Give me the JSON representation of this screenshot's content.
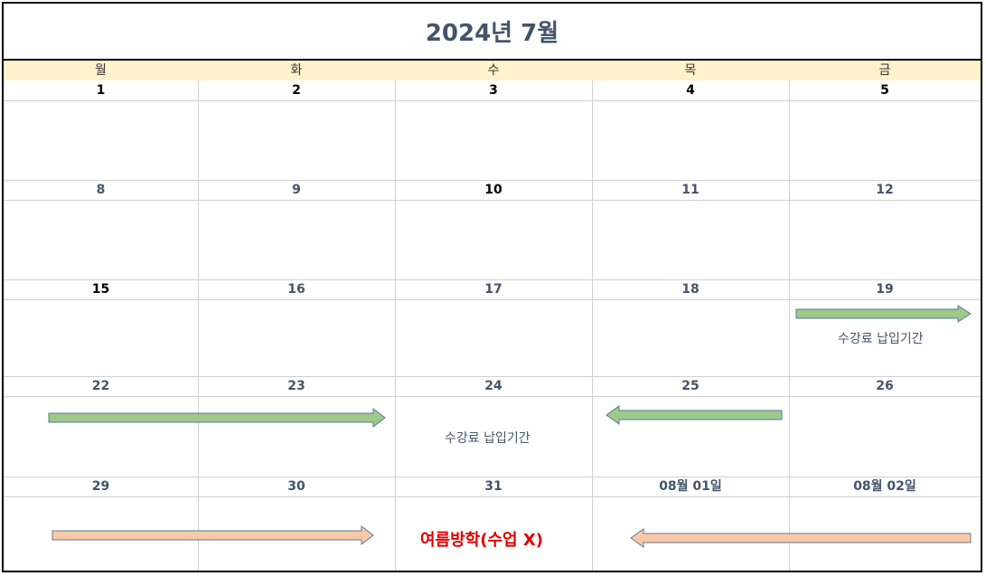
{
  "calendar": {
    "title": "2024년 7월",
    "weekdays": [
      "월",
      "화",
      "수",
      "목",
      "금"
    ],
    "weeks": [
      [
        "1",
        "2",
        "3",
        "4",
        "5"
      ],
      [
        "8",
        "9",
        "10",
        "11",
        "12"
      ],
      [
        "15",
        "16",
        "17",
        "18",
        "19"
      ],
      [
        "22",
        "23",
        "24",
        "25",
        "26"
      ],
      [
        "29",
        "30",
        "31",
        "08월 01일",
        "08월 02일"
      ]
    ],
    "notes": {
      "payment_week3": "수강료 납입기간",
      "payment_week4": "수강료 납입기간",
      "vacation": "여름방학(수업 X)"
    }
  },
  "colors": {
    "title_text": "#44546a",
    "weekday_header_bg": "#fff2cc",
    "payment_arrow": "#9dc98a",
    "vacation_arrow": "#f8c9a8",
    "vacation_text": "#e00000"
  }
}
